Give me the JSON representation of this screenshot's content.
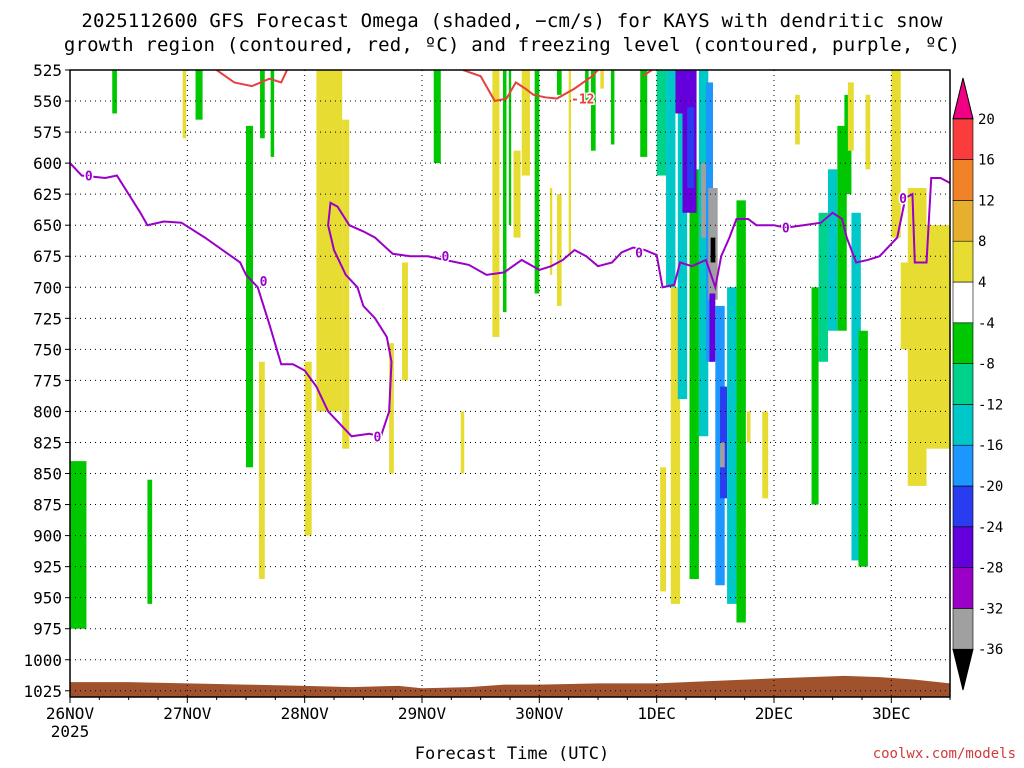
{
  "title_line1": "2025112600 GFS Forecast Omega (shaded, −cm/s) for KAYS with dendritic snow",
  "title_line2": "growth region (contoured, red, ºC) and freezing level (contoured, purple, ºC)",
  "credit": "coolwx.com/models",
  "chart_data": {
    "type": "heatmap",
    "title": "2025112600 GFS Forecast Omega (shaded, −cm/s) for KAYS with dendritic snow growth region (contoured, red, ºC) and freezing level (contoured, purple, ºC)",
    "xlabel": "Forecast Time (UTC)",
    "ylabel": "",
    "x_ticks": [
      "26NOV\n2025",
      "27NOV",
      "28NOV",
      "29NOV",
      "30NOV",
      "1DEC",
      "2DEC",
      "3DEC"
    ],
    "x_tick_labels": [
      {
        "main": "26NOV",
        "sub": "2025"
      },
      {
        "main": "27NOV",
        "sub": ""
      },
      {
        "main": "28NOV",
        "sub": ""
      },
      {
        "main": "29NOV",
        "sub": ""
      },
      {
        "main": "30NOV",
        "sub": ""
      },
      {
        "main": "1DEC",
        "sub": ""
      },
      {
        "main": "2DEC",
        "sub": ""
      },
      {
        "main": "3DEC",
        "sub": ""
      }
    ],
    "x_range_days": [
      0,
      7.5
    ],
    "y_ticks": [
      525,
      550,
      575,
      600,
      625,
      650,
      675,
      700,
      725,
      750,
      775,
      800,
      825,
      850,
      875,
      900,
      925,
      950,
      975,
      1000,
      1025
    ],
    "y_range_hpa": [
      525,
      1030
    ],
    "grid": true,
    "colorbar": {
      "levels": [
        -36,
        -32,
        -28,
        -24,
        -20,
        -16,
        -12,
        -8,
        -4,
        4,
        8,
        12,
        16,
        20
      ],
      "labels": [
        "-36",
        "-32",
        "-28",
        "-24",
        "-20",
        "-16",
        "-12",
        "-8",
        "-4",
        "4",
        "8",
        "12",
        "16",
        "20"
      ],
      "colors": [
        "#000000",
        "#a0a0a0",
        "#9a00c8",
        "#6400dc",
        "#2a3cf0",
        "#1e96ff",
        "#00c8c8",
        "#00d28c",
        "#00c800",
        "#ffffff",
        "#e6dc32",
        "#e6af2d",
        "#f08228",
        "#fa3c3c",
        "#f00082"
      ]
    },
    "omega_patches": [
      {
        "t": [
          0.0,
          0.14
        ],
        "p": [
          840,
          975
        ],
        "c": "#00c800"
      },
      {
        "t": [
          0.36,
          0.4
        ],
        "p": [
          525,
          560
        ],
        "c": "#00c800"
      },
      {
        "t": [
          0.66,
          0.7
        ],
        "p": [
          855,
          955
        ],
        "c": "#00c800"
      },
      {
        "t": [
          0.96,
          0.99
        ],
        "p": [
          525,
          580
        ],
        "c": "#e6dc32"
      },
      {
        "t": [
          1.5,
          1.56
        ],
        "p": [
          570,
          845
        ],
        "c": "#00c800"
      },
      {
        "t": [
          1.62,
          1.66
        ],
        "p": [
          525,
          580
        ],
        "c": "#00c800"
      },
      {
        "t": [
          1.71,
          1.74
        ],
        "p": [
          525,
          595
        ],
        "c": "#00c800"
      },
      {
        "t": [
          1.61,
          1.66
        ],
        "p": [
          760,
          935
        ],
        "c": "#e6dc32"
      },
      {
        "t": [
          2.0,
          2.06
        ],
        "p": [
          760,
          900
        ],
        "c": "#e6dc32"
      },
      {
        "t": [
          1.07,
          1.13
        ],
        "p": [
          525,
          565
        ],
        "c": "#00c800"
      },
      {
        "t": [
          2.1,
          2.32
        ],
        "p": [
          525,
          800
        ],
        "c": "#e6dc32"
      },
      {
        "t": [
          2.32,
          2.38
        ],
        "p": [
          565,
          830
        ],
        "c": "#e6dc32"
      },
      {
        "t": [
          2.72,
          2.76
        ],
        "p": [
          745,
          850
        ],
        "c": "#e6dc32"
      },
      {
        "t": [
          2.83,
          2.88
        ],
        "p": [
          680,
          775
        ],
        "c": "#e6dc32"
      },
      {
        "t": [
          3.1,
          3.16
        ],
        "p": [
          525,
          600
        ],
        "c": "#00c800"
      },
      {
        "t": [
          3.33,
          3.36
        ],
        "p": [
          800,
          850
        ],
        "c": "#e6dc32"
      },
      {
        "t": [
          3.6,
          3.66
        ],
        "p": [
          525,
          740
        ],
        "c": "#e6dc32"
      },
      {
        "t": [
          3.69,
          3.72
        ],
        "p": [
          525,
          720
        ],
        "c": "#00c800"
      },
      {
        "t": [
          3.74,
          3.76
        ],
        "p": [
          525,
          650
        ],
        "c": "#00c800"
      },
      {
        "t": [
          3.78,
          3.84
        ],
        "p": [
          590,
          660
        ],
        "c": "#e6dc32"
      },
      {
        "t": [
          3.85,
          3.92
        ],
        "p": [
          525,
          610
        ],
        "c": "#e6dc32"
      },
      {
        "t": [
          3.96,
          4.0
        ],
        "p": [
          525,
          705
        ],
        "c": "#00c800"
      },
      {
        "t": [
          4.09,
          4.11
        ],
        "p": [
          620,
          690
        ],
        "c": "#e6dc32"
      },
      {
        "t": [
          4.15,
          4.19
        ],
        "p": [
          525,
          545
        ],
        "c": "#00c800"
      },
      {
        "t": [
          4.15,
          4.19
        ],
        "p": [
          625,
          715
        ],
        "c": "#e6dc32"
      },
      {
        "t": [
          4.25,
          4.27
        ],
        "p": [
          525,
          675
        ],
        "c": "#e6dc32"
      },
      {
        "t": [
          4.39,
          4.42
        ],
        "p": [
          525,
          550
        ],
        "c": "#00c800"
      },
      {
        "t": [
          4.44,
          4.48
        ],
        "p": [
          525,
          590
        ],
        "c": "#00c800"
      },
      {
        "t": [
          4.52,
          4.55
        ],
        "p": [
          525,
          540
        ],
        "c": "#e6dc32"
      },
      {
        "t": [
          4.61,
          4.64
        ],
        "p": [
          525,
          585
        ],
        "c": "#00c800"
      },
      {
        "t": [
          4.86,
          4.92
        ],
        "p": [
          525,
          595
        ],
        "c": "#00c800"
      },
      {
        "t": [
          5.0,
          5.08
        ],
        "p": [
          525,
          610
        ],
        "c": "#00d28c"
      },
      {
        "t": [
          5.03,
          5.08
        ],
        "p": [
          845,
          945
        ],
        "c": "#e6dc32"
      },
      {
        "t": [
          5.12,
          5.2
        ],
        "p": [
          700,
          955
        ],
        "c": "#e6dc32"
      },
      {
        "t": [
          5.08,
          5.16
        ],
        "p": [
          525,
          700
        ],
        "c": "#00c8c8"
      },
      {
        "t": [
          5.18,
          5.26
        ],
        "p": [
          525,
          790
        ],
        "c": "#00c8c8"
      },
      {
        "t": [
          5.28,
          5.36
        ],
        "p": [
          605,
          935
        ],
        "c": "#00c800"
      },
      {
        "t": [
          5.16,
          5.24
        ],
        "p": [
          525,
          560
        ],
        "c": "#6400dc"
      },
      {
        "t": [
          5.22,
          5.34
        ],
        "p": [
          525,
          640
        ],
        "c": "#6400dc"
      },
      {
        "t": [
          5.26,
          5.32
        ],
        "p": [
          555,
          620
        ],
        "c": "#2a3cf0"
      },
      {
        "t": [
          5.36,
          5.44
        ],
        "p": [
          525,
          820
        ],
        "c": "#00c8c8"
      },
      {
        "t": [
          5.38,
          5.44
        ],
        "p": [
          600,
          660
        ],
        "c": "#a0a0a0"
      },
      {
        "t": [
          5.42,
          5.48
        ],
        "p": [
          535,
          760
        ],
        "c": "#1e96ff"
      },
      {
        "t": [
          5.44,
          5.52
        ],
        "p": [
          620,
          710
        ],
        "c": "#a0a0a0"
      },
      {
        "t": [
          5.45,
          5.5
        ],
        "p": [
          705,
          760
        ],
        "c": "#6400dc"
      },
      {
        "t": [
          5.46,
          5.5
        ],
        "p": [
          660,
          680
        ],
        "c": "#000000"
      },
      {
        "t": [
          5.5,
          5.58
        ],
        "p": [
          715,
          940
        ],
        "c": "#1e96ff"
      },
      {
        "t": [
          5.54,
          5.6
        ],
        "p": [
          780,
          870
        ],
        "c": "#2a3cf0"
      },
      {
        "t": [
          5.54,
          5.58
        ],
        "p": [
          825,
          845
        ],
        "c": "#a0a0a0"
      },
      {
        "t": [
          5.6,
          5.68
        ],
        "p": [
          700,
          955
        ],
        "c": "#00c8c8"
      },
      {
        "t": [
          5.68,
          5.76
        ],
        "p": [
          630,
          970
        ],
        "c": "#00c800"
      },
      {
        "t": [
          5.77,
          5.8
        ],
        "p": [
          800,
          825
        ],
        "c": "#e6dc32"
      },
      {
        "t": [
          5.9,
          5.95
        ],
        "p": [
          800,
          870
        ],
        "c": "#e6dc32"
      },
      {
        "t": [
          6.18,
          6.22
        ],
        "p": [
          545,
          585
        ],
        "c": "#e6dc32"
      },
      {
        "t": [
          6.32,
          6.38
        ],
        "p": [
          700,
          875
        ],
        "c": "#00c800"
      },
      {
        "t": [
          6.38,
          6.46
        ],
        "p": [
          640,
          760
        ],
        "c": "#00d28c"
      },
      {
        "t": [
          6.46,
          6.54
        ],
        "p": [
          605,
          735
        ],
        "c": "#00c8c8"
      },
      {
        "t": [
          6.54,
          6.62
        ],
        "p": [
          570,
          735
        ],
        "c": "#00c800"
      },
      {
        "t": [
          6.6,
          6.66
        ],
        "p": [
          545,
          625
        ],
        "c": "#00c800"
      },
      {
        "t": [
          6.63,
          6.68
        ],
        "p": [
          535,
          590
        ],
        "c": "#e6dc32"
      },
      {
        "t": [
          6.66,
          6.74
        ],
        "p": [
          640,
          920
        ],
        "c": "#00c8c8"
      },
      {
        "t": [
          6.72,
          6.8
        ],
        "p": [
          735,
          925
        ],
        "c": "#00c800"
      },
      {
        "t": [
          6.78,
          6.82
        ],
        "p": [
          545,
          605
        ],
        "c": "#e6dc32"
      },
      {
        "t": [
          7.0,
          7.08
        ],
        "p": [
          525,
          660
        ],
        "c": "#e6dc32"
      },
      {
        "t": [
          7.08,
          7.16
        ],
        "p": [
          680,
          750
        ],
        "c": "#e6dc32"
      },
      {
        "t": [
          7.14,
          7.3
        ],
        "p": [
          620,
          860
        ],
        "c": "#e6dc32"
      },
      {
        "t": [
          7.3,
          7.5
        ],
        "p": [
          650,
          830
        ],
        "c": "#e6dc32"
      }
    ],
    "freezing_level_0C": [
      [
        0.0,
        600
      ],
      [
        0.1,
        610
      ],
      [
        0.3,
        612
      ],
      [
        0.4,
        610
      ],
      [
        0.5,
        625
      ],
      [
        0.6,
        640
      ],
      [
        0.66,
        650
      ],
      [
        0.8,
        647
      ],
      [
        0.95,
        648
      ],
      [
        1.15,
        660
      ],
      [
        1.3,
        670
      ],
      [
        1.45,
        680
      ],
      [
        1.5,
        690
      ],
      [
        1.6,
        700
      ],
      [
        1.7,
        730
      ],
      [
        1.8,
        762
      ],
      [
        1.9,
        762
      ],
      [
        2.0,
        767
      ],
      [
        2.1,
        780
      ],
      [
        2.2,
        800
      ],
      [
        2.35,
        815
      ],
      [
        2.4,
        820
      ],
      [
        2.55,
        818
      ],
      [
        2.65,
        820
      ],
      [
        2.72,
        800
      ],
      [
        2.74,
        760
      ],
      [
        2.7,
        740
      ],
      [
        2.6,
        725
      ],
      [
        2.5,
        715
      ],
      [
        2.45,
        700
      ],
      [
        2.35,
        690
      ],
      [
        2.25,
        670
      ],
      [
        2.2,
        650
      ],
      [
        2.22,
        632
      ],
      [
        2.28,
        635
      ],
      [
        2.38,
        650
      ],
      [
        2.5,
        655
      ],
      [
        2.6,
        660
      ],
      [
        2.75,
        673
      ],
      [
        2.9,
        675
      ],
      [
        3.05,
        675
      ],
      [
        3.2,
        678
      ],
      [
        3.4,
        682
      ],
      [
        3.55,
        690
      ],
      [
        3.7,
        688
      ],
      [
        3.85,
        678
      ],
      [
        4.0,
        686
      ],
      [
        4.1,
        683
      ],
      [
        4.2,
        678
      ],
      [
        4.3,
        670
      ],
      [
        4.4,
        675
      ],
      [
        4.5,
        683
      ],
      [
        4.62,
        680
      ],
      [
        4.7,
        672
      ],
      [
        4.8,
        668
      ],
      [
        4.9,
        670
      ],
      [
        5.0,
        674
      ],
      [
        5.05,
        700
      ],
      [
        5.15,
        698
      ],
      [
        5.2,
        680
      ],
      [
        5.3,
        683
      ],
      [
        5.42,
        678
      ],
      [
        5.5,
        700
      ],
      [
        5.55,
        675
      ],
      [
        5.62,
        660
      ],
      [
        5.68,
        645
      ],
      [
        5.78,
        645
      ],
      [
        5.85,
        650
      ],
      [
        6.0,
        650
      ],
      [
        6.1,
        652
      ],
      [
        6.25,
        650
      ],
      [
        6.4,
        648
      ],
      [
        6.5,
        640
      ],
      [
        6.58,
        645
      ],
      [
        6.62,
        660
      ],
      [
        6.7,
        680
      ],
      [
        6.8,
        678
      ],
      [
        6.9,
        675
      ],
      [
        7.0,
        665
      ],
      [
        7.05,
        660
      ],
      [
        7.12,
        628
      ],
      [
        7.18,
        625
      ],
      [
        7.2,
        680
      ],
      [
        7.3,
        680
      ],
      [
        7.34,
        612
      ],
      [
        7.42,
        612
      ],
      [
        7.5,
        616
      ]
    ],
    "dgz_minus12C": [
      [
        1.25,
        525
      ],
      [
        1.4,
        535
      ],
      [
        1.55,
        538
      ],
      [
        1.7,
        532
      ],
      [
        1.8,
        535
      ],
      [
        1.85,
        525
      ]
    ],
    "dgz_minus12C_b": [
      [
        3.35,
        525
      ],
      [
        3.5,
        530
      ],
      [
        3.62,
        550
      ],
      [
        3.72,
        548
      ],
      [
        3.8,
        535
      ],
      [
        3.88,
        540
      ],
      [
        3.95,
        545
      ],
      [
        4.05,
        547
      ],
      [
        4.15,
        548
      ],
      [
        4.3,
        540
      ],
      [
        4.45,
        530
      ],
      [
        4.5,
        525
      ]
    ],
    "dgz_minus12C_c": [
      [
        4.88,
        530
      ],
      [
        4.96,
        525
      ]
    ],
    "contour_labels": [
      {
        "text": "0",
        "t": 0.16,
        "p": 610,
        "color": "#9a00c8"
      },
      {
        "text": "0",
        "t": 1.65,
        "p": 695,
        "color": "#9a00c8"
      },
      {
        "text": "0",
        "t": 2.62,
        "p": 820,
        "color": "#9a00c8"
      },
      {
        "text": "0",
        "t": 3.2,
        "p": 675,
        "color": "#9a00c8"
      },
      {
        "text": "0",
        "t": 4.85,
        "p": 672,
        "color": "#9a00c8"
      },
      {
        "text": "0",
        "t": 6.1,
        "p": 652,
        "color": "#9a00c8"
      },
      {
        "text": "0",
        "t": 7.1,
        "p": 628,
        "color": "#9a00c8"
      },
      {
        "text": "-12",
        "t": 4.37,
        "p": 548,
        "color": "#e84040"
      }
    ],
    "terrain_color": "#a0522d",
    "terrain_top_hpa": [
      [
        0.0,
        1018
      ],
      [
        0.5,
        1018
      ],
      [
        1.0,
        1019
      ],
      [
        1.5,
        1020
      ],
      [
        2.0,
        1021
      ],
      [
        2.4,
        1022
      ],
      [
        2.8,
        1021
      ],
      [
        3.0,
        1023
      ],
      [
        3.4,
        1022
      ],
      [
        3.7,
        1020
      ],
      [
        4.0,
        1020
      ],
      [
        4.5,
        1019
      ],
      [
        5.0,
        1019
      ],
      [
        5.5,
        1017
      ],
      [
        6.0,
        1015
      ],
      [
        6.3,
        1014
      ],
      [
        6.6,
        1013
      ],
      [
        6.9,
        1014
      ],
      [
        7.2,
        1016
      ],
      [
        7.5,
        1019
      ]
    ]
  },
  "xlabel": "Forecast Time (UTC)"
}
